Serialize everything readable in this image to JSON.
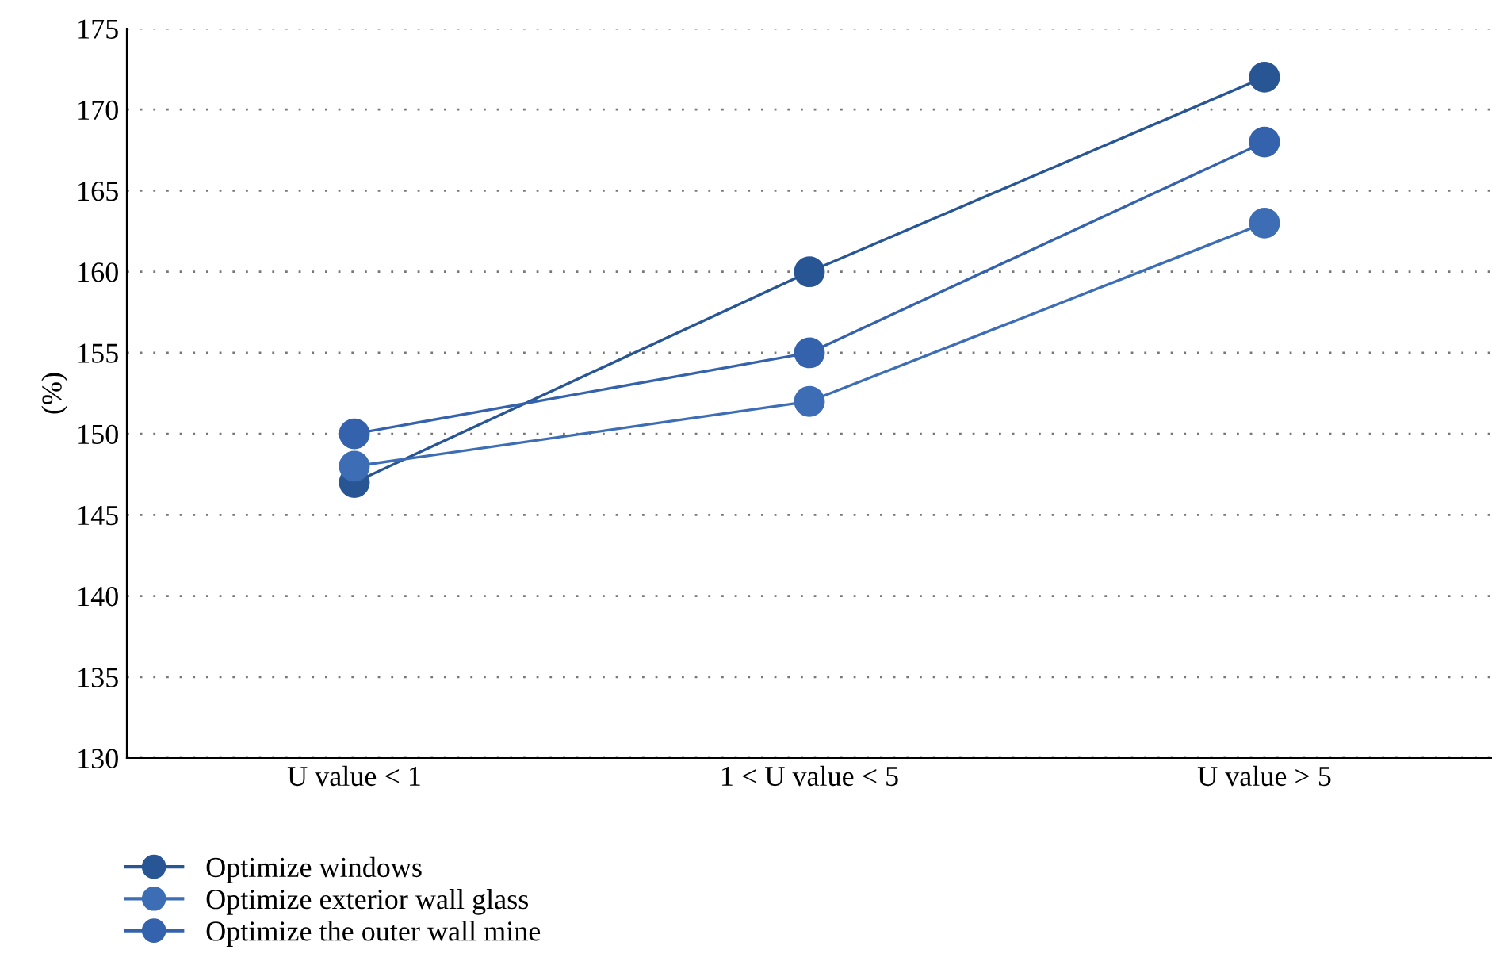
{
  "chart_data": {
    "type": "line",
    "ylabel": "(%)",
    "categories": [
      "U value < 1",
      "1 < U value < 5",
      "U value > 5"
    ],
    "series": [
      {
        "name": "Optimize windows",
        "color": "#285594",
        "values": [
          147,
          160,
          172
        ]
      },
      {
        "name": "Optimize exterior wall glass",
        "color": "#3d6db5",
        "values": [
          148,
          152,
          163
        ]
      },
      {
        "name": "Optimize the outer wall mine",
        "color": "#3462ac",
        "values": [
          150,
          155,
          168
        ]
      }
    ],
    "ylim": [
      130,
      175
    ],
    "yticks": [
      130,
      135,
      140,
      145,
      150,
      155,
      160,
      165,
      170,
      175
    ],
    "grid": "y",
    "legend": "bottom left",
    "marker": "circle",
    "line_style": "solid"
  }
}
